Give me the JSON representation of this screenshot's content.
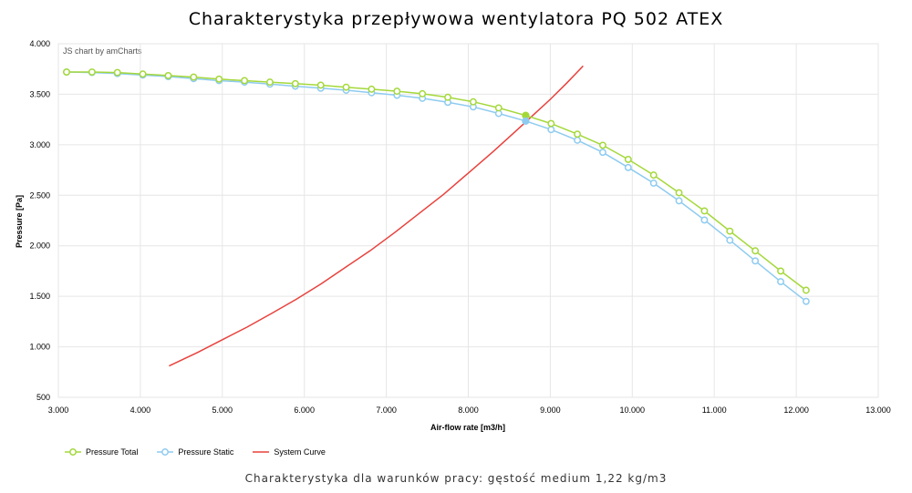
{
  "title": "Charakterystyka przepływowa wentylatora PQ 502 ATEX",
  "credit": "JS chart by amCharts",
  "footer": "Charakterystyka dla warunków pracy: gęstość medium 1,22 kg/m3",
  "chart_data": {
    "type": "line",
    "xlabel": "Air-flow rate [m3/h]",
    "ylabel": "Pressure [Pa]",
    "xlim": [
      3000,
      13000
    ],
    "ylim": [
      500,
      4000
    ],
    "x_ticks": [
      {
        "v": 3000,
        "label": "3.000"
      },
      {
        "v": 4000,
        "label": "4.000"
      },
      {
        "v": 5000,
        "label": "5.000"
      },
      {
        "v": 6000,
        "label": "6.000"
      },
      {
        "v": 7000,
        "label": "7.000"
      },
      {
        "v": 8000,
        "label": "8.000"
      },
      {
        "v": 9000,
        "label": "9.000"
      },
      {
        "v": 10000,
        "label": "10.000"
      },
      {
        "v": 11000,
        "label": "11.000"
      },
      {
        "v": 12000,
        "label": "12.000"
      },
      {
        "v": 13000,
        "label": "13.000"
      }
    ],
    "y_ticks": [
      {
        "v": 500,
        "label": "500"
      },
      {
        "v": 1000,
        "label": "1.000"
      },
      {
        "v": 1500,
        "label": "1.500"
      },
      {
        "v": 2000,
        "label": "2.000"
      },
      {
        "v": 2500,
        "label": "2.500"
      },
      {
        "v": 3000,
        "label": "3.000"
      },
      {
        "v": 3500,
        "label": "3.500"
      },
      {
        "v": 4000,
        "label": "4.000"
      }
    ],
    "grid": true,
    "legend_position": "bottom-left",
    "series": [
      {
        "name": "Pressure Total",
        "color": "#a4d83a",
        "markers": true,
        "x": [
          3100,
          3410,
          3720,
          4030,
          4340,
          4650,
          4960,
          5270,
          5580,
          5890,
          6200,
          6510,
          6820,
          7130,
          7440,
          7750,
          8060,
          8370,
          8700,
          9010,
          9330,
          9640,
          9950,
          10260,
          10570,
          10880,
          11190,
          11500,
          11810,
          12120
        ],
        "y": [
          3720,
          3720,
          3715,
          3700,
          3685,
          3670,
          3650,
          3635,
          3620,
          3605,
          3590,
          3570,
          3550,
          3530,
          3505,
          3470,
          3425,
          3365,
          3290,
          3210,
          3105,
          2995,
          2855,
          2700,
          2525,
          2345,
          2145,
          1950,
          1750,
          1560
        ]
      },
      {
        "name": "Pressure Static",
        "color": "#8ecbf0",
        "markers": true,
        "x": [
          3100,
          3410,
          3720,
          4030,
          4340,
          4650,
          4960,
          5270,
          5580,
          5890,
          6200,
          6510,
          6820,
          7130,
          7440,
          7750,
          8060,
          8370,
          8700,
          9010,
          9330,
          9640,
          9950,
          10260,
          10570,
          10880,
          11190,
          11500,
          11810,
          12120
        ],
        "y": [
          3720,
          3715,
          3705,
          3690,
          3675,
          3655,
          3635,
          3620,
          3600,
          3580,
          3560,
          3540,
          3515,
          3490,
          3460,
          3420,
          3375,
          3310,
          3235,
          3150,
          3045,
          2925,
          2775,
          2620,
          2445,
          2255,
          2055,
          1850,
          1645,
          1450
        ]
      },
      {
        "name": "System Curve",
        "color": "#e8413c",
        "markers": false,
        "x": [
          4350,
          4700,
          5000,
          5300,
          5600,
          5900,
          6200,
          6500,
          6800,
          7100,
          7400,
          7700,
          8000,
          8300,
          8600,
          8800,
          9000,
          9200,
          9400
        ],
        "y": [
          810,
          945,
          1070,
          1195,
          1330,
          1470,
          1620,
          1785,
          1950,
          2130,
          2320,
          2510,
          2720,
          2930,
          3150,
          3300,
          3450,
          3610,
          3780
        ]
      }
    ],
    "operating_point": {
      "x": 8700,
      "y_total": 3290,
      "y_static": 3235
    }
  }
}
